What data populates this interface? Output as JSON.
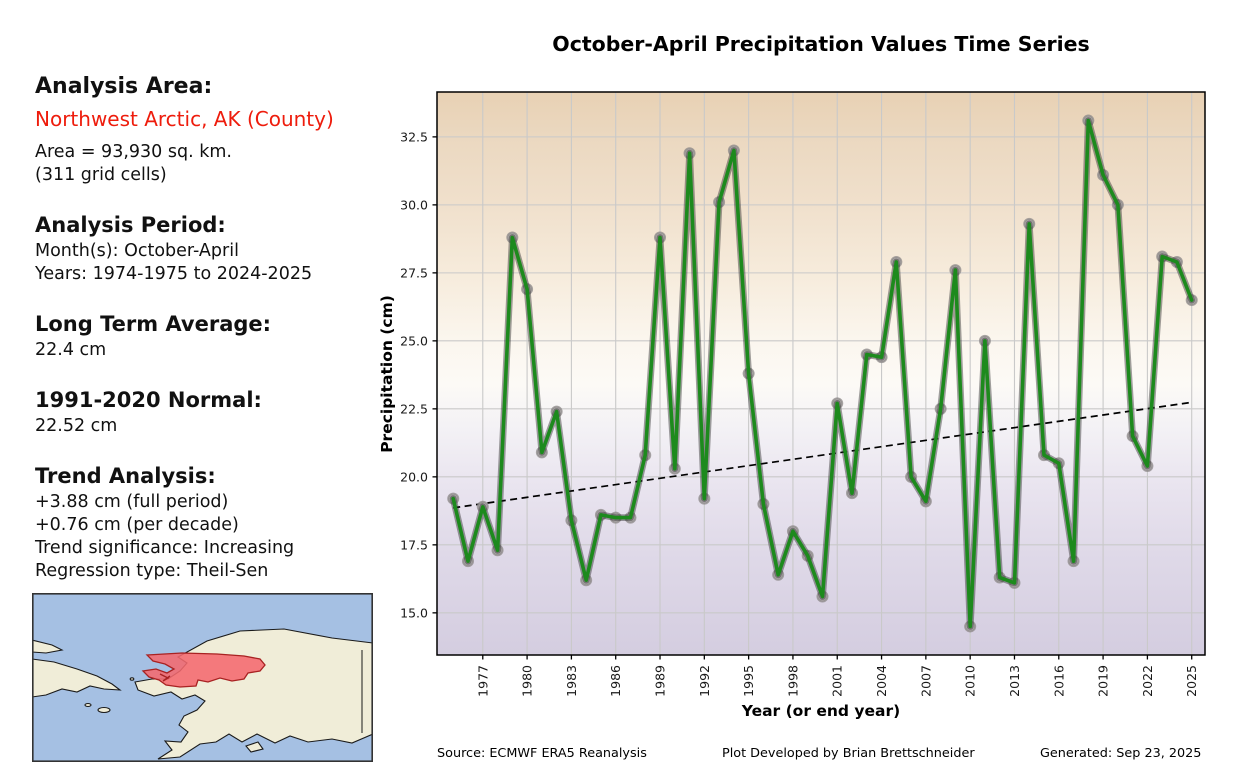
{
  "title": "October-April Precipitation Values Time Series",
  "info_panel": {
    "analysis_area_label": "Analysis Area:",
    "analysis_area_value": "Northwest Arctic, AK (County)",
    "area_line1": "Area = 93,930 sq. km.",
    "area_line2": "(311 grid cells)",
    "analysis_period_label": "Analysis Period:",
    "period_months": "Month(s): October-April",
    "period_years": "Years: 1974-1975 to 2024-2025",
    "long_term_avg_label": "Long Term Average:",
    "long_term_avg_value": "22.4 cm",
    "normal_label": "1991-2020 Normal:",
    "normal_value": "22.52 cm",
    "trend_label": "Trend Analysis:",
    "trend_full_period": "+3.88 cm (full period)",
    "trend_per_decade": "+0.76 cm (per decade)",
    "trend_significance": "Trend significance: Increasing",
    "regression_type": "Regression type: Theil-Sen"
  },
  "footer": {
    "source": "Source: ECMWF ERA5 Reanalysis",
    "developer": "Plot Developed by Brian Brettschneider",
    "generated": "Generated: Sep 23, 2025"
  },
  "chart_data": {
    "type": "line",
    "title": "October-April Precipitation Values Time Series",
    "xlabel": "Year (or end year)",
    "ylabel": "Precipitation (cm)",
    "years": [
      1975,
      1976,
      1977,
      1978,
      1979,
      1980,
      1981,
      1982,
      1983,
      1984,
      1985,
      1986,
      1987,
      1988,
      1989,
      1990,
      1991,
      1992,
      1993,
      1994,
      1995,
      1996,
      1997,
      1998,
      1999,
      2000,
      2001,
      2002,
      2003,
      2004,
      2005,
      2006,
      2007,
      2008,
      2009,
      2010,
      2011,
      2012,
      2013,
      2014,
      2015,
      2016,
      2017,
      2018,
      2019,
      2020,
      2021,
      2022,
      2023,
      2024,
      2025
    ],
    "values": [
      19.2,
      16.9,
      18.9,
      17.3,
      28.8,
      26.9,
      20.9,
      22.4,
      18.4,
      16.2,
      18.6,
      18.5,
      18.5,
      20.8,
      28.8,
      20.3,
      31.9,
      19.2,
      30.1,
      32.0,
      23.8,
      19.0,
      16.4,
      18.0,
      17.1,
      15.6,
      22.7,
      19.4,
      24.5,
      24.4,
      27.9,
      20.0,
      19.1,
      22.5,
      27.6,
      14.5,
      25.0,
      16.3,
      16.1,
      29.3,
      20.8,
      20.5,
      16.9,
      33.1,
      31.1,
      30.0,
      21.5,
      20.4,
      28.1,
      27.9,
      26.5
    ],
    "trend_line": {
      "style": "dashed",
      "start_year": 1975,
      "start_value": 18.86,
      "end_year": 2025,
      "end_value": 22.74
    },
    "xticks": [
      1977,
      1980,
      1983,
      1986,
      1989,
      1992,
      1995,
      1998,
      2001,
      2004,
      2007,
      2010,
      2013,
      2016,
      2019,
      2022,
      2025
    ],
    "yticks": [
      15.0,
      17.5,
      20.0,
      22.5,
      25.0,
      27.5,
      30.0,
      32.5
    ],
    "xlim": [
      1973.9,
      2025.9
    ],
    "ylim": [
      13.45,
      34.15
    ],
    "grid": true,
    "legend": "none",
    "line_color": "#1d8a1d",
    "line_halo_color": "#2f2f2f",
    "marker_color": "#aaa6a6",
    "marker_edge_color": "#8c8888",
    "trend_color": "#000000",
    "grid_color": "#c9c9c9",
    "bg_gradient": [
      {
        "offset": 0.0,
        "color": "#e8d1b4"
      },
      {
        "offset": 0.08,
        "color": "#ebd8c0"
      },
      {
        "offset": 0.2,
        "color": "#f0e0cc"
      },
      {
        "offset": 0.32,
        "color": "#f6ebdb"
      },
      {
        "offset": 0.44,
        "color": "#fbf6ee"
      },
      {
        "offset": 0.52,
        "color": "#fcfaf6"
      },
      {
        "offset": 0.6,
        "color": "#f3f1f5"
      },
      {
        "offset": 0.7,
        "color": "#e9e4ef"
      },
      {
        "offset": 0.82,
        "color": "#dfd9e8"
      },
      {
        "offset": 1.0,
        "color": "#d4cde0"
      }
    ]
  },
  "colors": {
    "accent_red": "#ee1c0c",
    "map_ocean": "#a5c0e3",
    "map_land": "#f0edd8",
    "map_coast": "#1a1a1a",
    "map_region_fill": "#f4696e",
    "map_region_border": "#a82222"
  }
}
